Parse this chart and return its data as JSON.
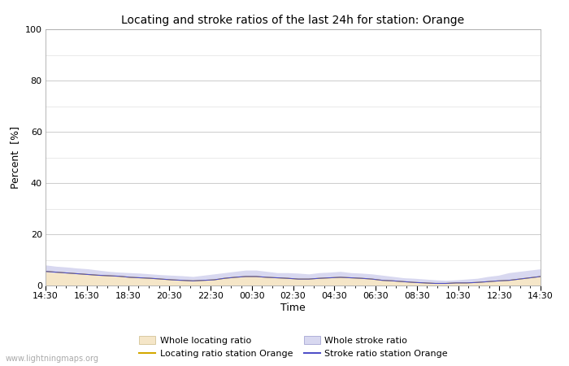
{
  "title": "Locating and stroke ratios of the last 24h for station: Orange",
  "ylabel": "Percent  [%]",
  "xlabel": "Time",
  "ylim": [
    0,
    100
  ],
  "yticks": [
    0,
    20,
    40,
    60,
    80,
    100
  ],
  "ytick_minor": [
    10,
    30,
    50,
    70,
    90
  ],
  "xtick_labels": [
    "14:30",
    "16:30",
    "18:30",
    "20:30",
    "22:30",
    "00:30",
    "02:30",
    "04:30",
    "06:30",
    "08:30",
    "10:30",
    "12:30",
    "14:30"
  ],
  "background_color": "#ffffff",
  "plot_bg_color": "#ffffff",
  "grid_major_color": "#cccccc",
  "grid_minor_color": "#e0e0e0",
  "fill_locating_color": "#f5e6c8",
  "fill_stroke_color": "#d8d8f0",
  "line_locating_color": "#d4a800",
  "line_stroke_color": "#5050c8",
  "watermark": "www.lightningmaps.org",
  "whole_locating_ratio": [
    5.2,
    5.0,
    4.8,
    4.5,
    4.3,
    4.0,
    3.8,
    3.6,
    3.2,
    3.0,
    2.8,
    2.5,
    2.2,
    2.0,
    1.8,
    2.0,
    2.2,
    2.8,
    3.2,
    3.5,
    3.5,
    3.2,
    3.0,
    2.8,
    2.5,
    2.5,
    2.8,
    3.0,
    3.2,
    3.0,
    2.8,
    2.5,
    2.0,
    1.8,
    1.5,
    1.2,
    1.0,
    0.8,
    0.8,
    1.0,
    1.0,
    1.2,
    1.5,
    1.8,
    2.0,
    2.5,
    3.0,
    3.5
  ],
  "whole_stroke_ratio": [
    8.0,
    7.5,
    7.2,
    6.8,
    6.5,
    6.0,
    5.5,
    5.2,
    5.0,
    4.8,
    4.5,
    4.2,
    4.0,
    3.8,
    3.5,
    4.0,
    4.5,
    5.0,
    5.5,
    6.0,
    6.0,
    5.5,
    5.0,
    5.0,
    4.8,
    4.5,
    5.0,
    5.2,
    5.5,
    5.0,
    4.8,
    4.5,
    4.0,
    3.5,
    3.0,
    2.8,
    2.5,
    2.2,
    2.0,
    2.2,
    2.5,
    2.8,
    3.5,
    4.0,
    5.0,
    5.5,
    6.0,
    6.5
  ],
  "locating_station": [
    5.5,
    5.2,
    4.9,
    4.6,
    4.3,
    4.0,
    3.8,
    3.6,
    3.2,
    3.0,
    2.8,
    2.5,
    2.2,
    2.0,
    1.8,
    2.0,
    2.2,
    2.8,
    3.2,
    3.5,
    3.5,
    3.2,
    3.0,
    2.8,
    2.5,
    2.5,
    2.8,
    3.0,
    3.2,
    3.0,
    2.8,
    2.5,
    2.0,
    1.8,
    1.5,
    1.2,
    1.0,
    0.8,
    0.8,
    1.0,
    1.0,
    1.2,
    1.5,
    1.8,
    2.0,
    2.5,
    3.0,
    3.5
  ],
  "stroke_station": [
    5.5,
    5.2,
    4.9,
    4.6,
    4.3,
    4.0,
    3.8,
    3.6,
    3.2,
    3.0,
    2.8,
    2.5,
    2.2,
    2.0,
    1.8,
    2.0,
    2.2,
    2.8,
    3.2,
    3.5,
    3.5,
    3.2,
    3.0,
    2.8,
    2.5,
    2.5,
    2.8,
    3.0,
    3.2,
    3.0,
    2.8,
    2.5,
    2.0,
    1.8,
    1.5,
    1.2,
    1.0,
    0.8,
    0.8,
    1.0,
    1.0,
    1.2,
    1.5,
    1.8,
    2.0,
    2.5,
    3.0,
    3.5
  ]
}
